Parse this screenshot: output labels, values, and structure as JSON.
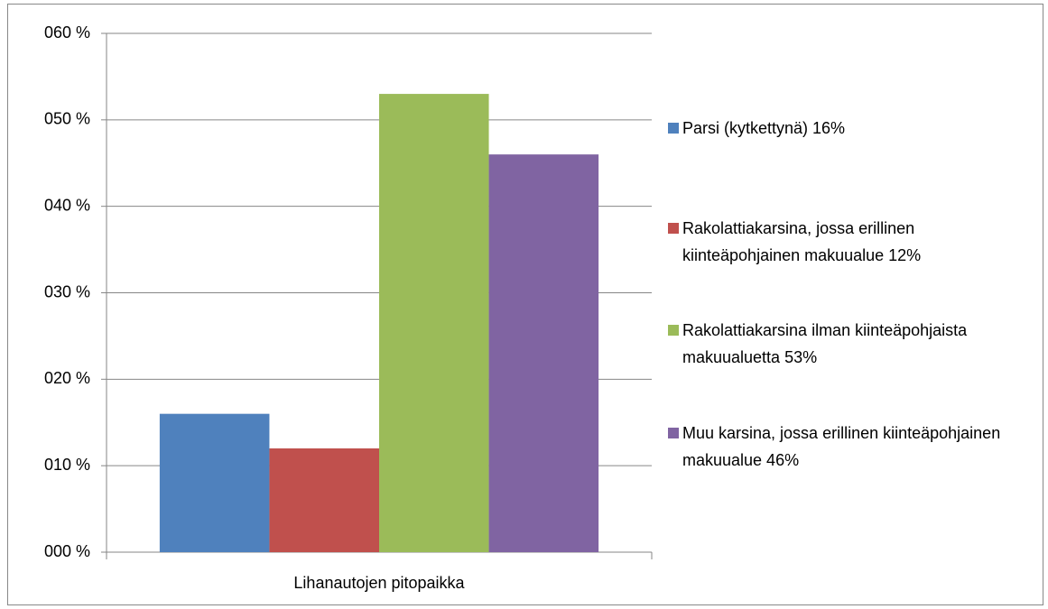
{
  "chart_data": {
    "type": "bar",
    "categories": [
      "Lihanautojen pitopaikka"
    ],
    "series": [
      {
        "name": "Parsi (kytkettynä) 16%",
        "color": "#4f81bd",
        "values": [
          16
        ]
      },
      {
        "name": "Rakolattiakarsina, jossa erillinen kiinteäpohjainen makuualue 12%",
        "color": "#c0504d",
        "values": [
          12
        ]
      },
      {
        "name": "Rakolattiakarsina ilman kiinteäpohjaista makuualuetta 53%",
        "color": "#9bbb59",
        "values": [
          53
        ]
      },
      {
        "name": "Muu karsina, jossa erillinen kiinteäpohjainen makuualue 46%",
        "color": "#8064a2",
        "values": [
          46
        ]
      }
    ],
    "ylim": [
      0,
      60
    ],
    "yticks": [
      {
        "value": 0,
        "label": "000 %"
      },
      {
        "value": 10,
        "label": "010 %"
      },
      {
        "value": 20,
        "label": "020 %"
      },
      {
        "value": 30,
        "label": "030 %"
      },
      {
        "value": 40,
        "label": "040 %"
      },
      {
        "value": 50,
        "label": "050 %"
      },
      {
        "value": 60,
        "label": "060 %"
      }
    ],
    "grid": true,
    "legend": "right"
  }
}
